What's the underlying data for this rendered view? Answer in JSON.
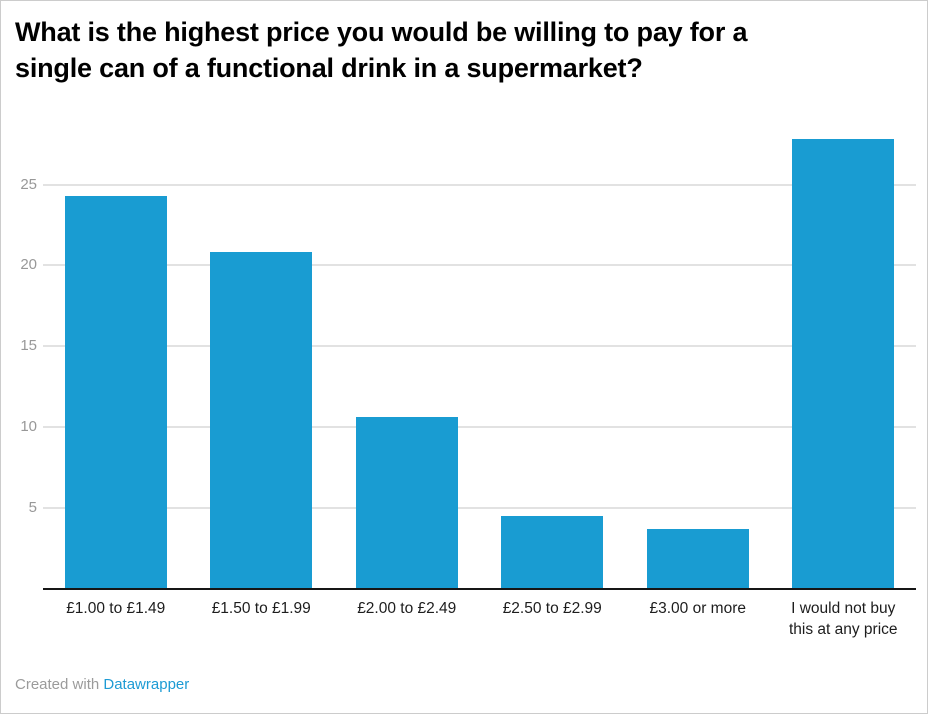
{
  "title": {
    "line1": "What is the highest price you would be willing to pay for a",
    "line2": "single can of a functional drink in a supermarket?"
  },
  "footer": {
    "prefix": "Created with ",
    "link": "Datawrapper"
  },
  "colors": {
    "bar": "#199cd2",
    "link": "#1d9bd4",
    "grid": "#e2e2e2",
    "axis": "#161616",
    "ytick_text": "#989898",
    "xlabel_text": "#1d1d1d",
    "title_text": "#000000",
    "footer_text": "#9b9b9b"
  },
  "chart_data": {
    "type": "bar",
    "title": "What is the highest price you would be willing to pay for a single can of a functional drink in a supermarket?",
    "categories": [
      "£1.00 to £1.49",
      "£1.50 to £1.99",
      "£2.00 to £2.49",
      "£2.50 to £2.99",
      "£3.00 or more",
      "I would not buy\nthis at any price"
    ],
    "values": [
      24.3,
      20.8,
      10.6,
      4.5,
      3.7,
      27.8
    ],
    "yticks": [
      5,
      10,
      15,
      20,
      25
    ],
    "ylim": [
      0,
      28
    ],
    "xlabel": "",
    "ylabel": "",
    "grid": true,
    "legend": "none",
    "attribution": "Created with Datawrapper"
  }
}
